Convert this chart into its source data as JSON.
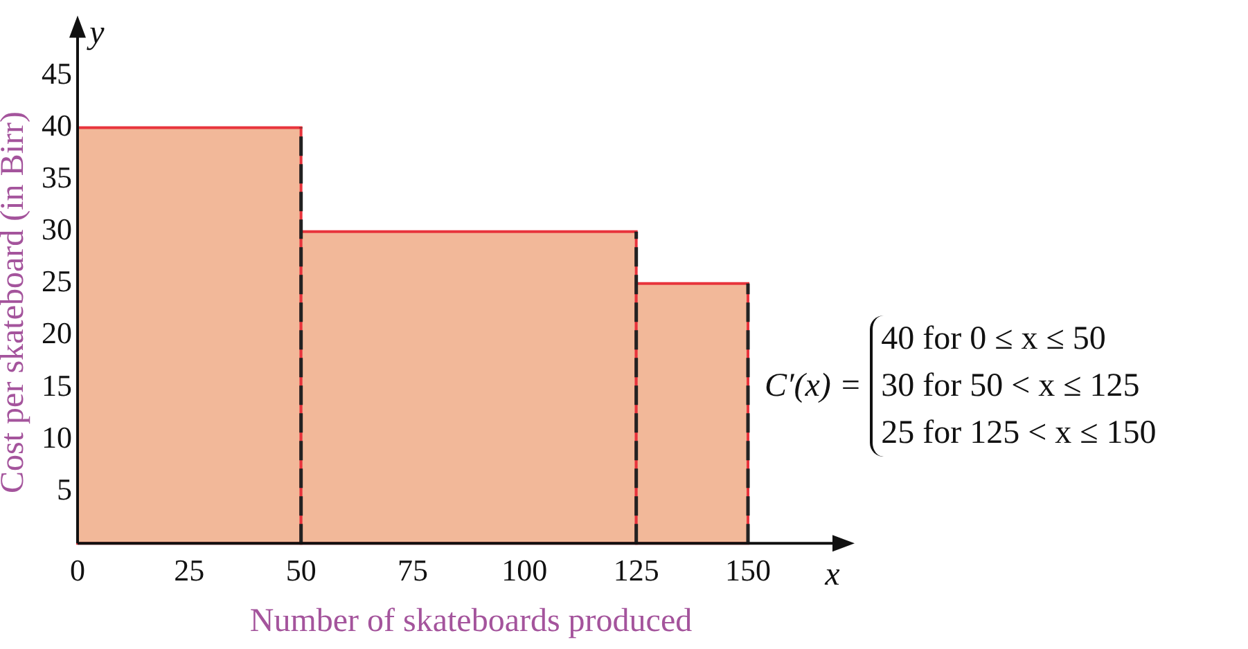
{
  "chart_data": {
    "type": "histogram",
    "xlabel": "Number of skateboards produced",
    "ylabel": "Cost per skateboard (in Birr)",
    "bins": [
      0,
      50,
      125,
      150
    ],
    "values": [
      40,
      30,
      25
    ],
    "color": "#f2b899",
    "xlim": [
      0,
      172
    ],
    "ylim": [
      0,
      50
    ],
    "xticks": [
      0,
      25,
      50,
      75,
      100,
      125,
      150
    ],
    "yticks": [
      5,
      10,
      15,
      20,
      25,
      30,
      35,
      40,
      45
    ],
    "grid": false,
    "legend": false,
    "ref_lines": [
      {
        "axis": "x",
        "value": 50,
        "color": "#222222",
        "line_style": "dashed"
      },
      {
        "axis": "x",
        "value": 125,
        "color": "#222222",
        "line_style": "dashed"
      },
      {
        "axis": "x",
        "value": 150,
        "color": "#222222",
        "line_style": "dashed"
      }
    ],
    "annotations": [
      "x",
      "y",
      "C′(x) =",
      "40 for 0 ≤ x ≤ 50",
      "30 for 50 < x ≤ 125",
      "25 for 125 < x ≤ 150"
    ]
  }
}
